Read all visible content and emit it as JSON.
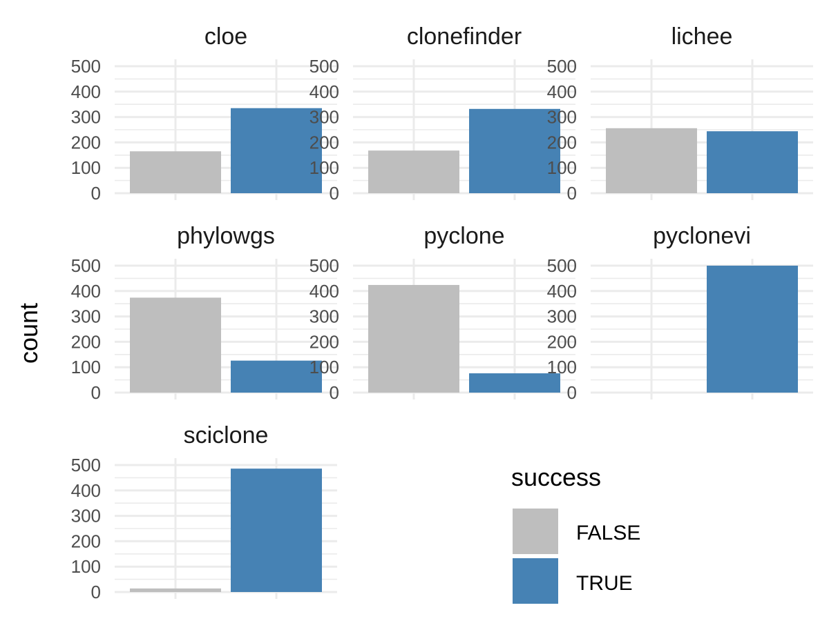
{
  "chart_data": {
    "type": "bar",
    "facet_by": "method",
    "ylabel": "count",
    "ylim": [
      0,
      500
    ],
    "yticks": [
      0,
      100,
      200,
      300,
      400,
      500
    ],
    "grid": true,
    "legend": {
      "title": "success",
      "placement": "bottom-right",
      "entries": [
        {
          "label": "FALSE",
          "color": "#bebebe"
        },
        {
          "label": "TRUE",
          "color": "#4682b4"
        }
      ]
    },
    "categories": [
      "FALSE",
      "TRUE"
    ],
    "facets": [
      {
        "name": "cloe",
        "values": [
          165,
          335
        ]
      },
      {
        "name": "clonefinder",
        "values": [
          168,
          332
        ]
      },
      {
        "name": "lichee",
        "values": [
          256,
          244
        ]
      },
      {
        "name": "phylowgs",
        "values": [
          374,
          126
        ]
      },
      {
        "name": "pyclone",
        "values": [
          424,
          76
        ]
      },
      {
        "name": "pyclonevi",
        "values": [
          0,
          500
        ]
      },
      {
        "name": "sciclone",
        "values": [
          14,
          486
        ]
      }
    ]
  }
}
